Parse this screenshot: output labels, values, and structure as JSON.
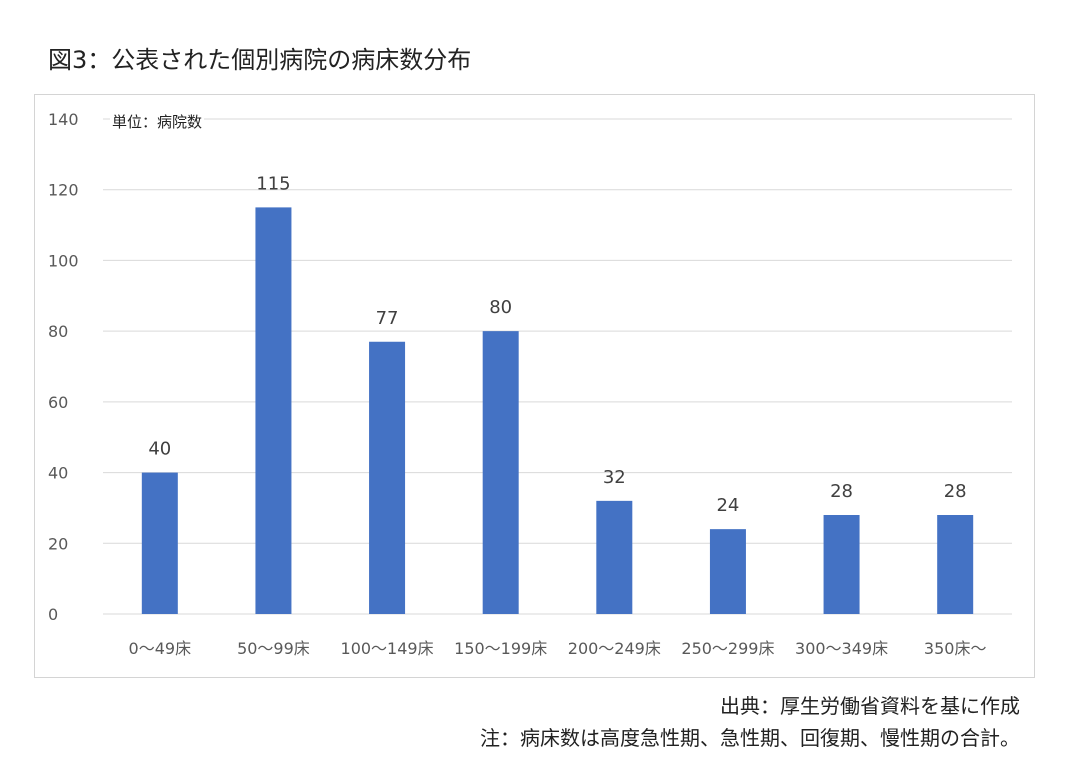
{
  "title": "図3：公表された個別病院の病床数分布",
  "unit_label": "単位：病院数",
  "source_note": "出典：厚生労働省資料を基に作成",
  "footnote": "注：病床数は高度急性期、急性期、回復期、慢性期の合計。",
  "colors": {
    "bar": "#4472c4",
    "grid": "#d9d9d9",
    "tick_text": "#595959",
    "label_text": "#404040"
  },
  "chart_data": {
    "type": "bar",
    "categories": [
      "0～49床",
      "50～99床",
      "100～149床",
      "150～199床",
      "200～249床",
      "250～299床",
      "300～349床",
      "350床～"
    ],
    "values": [
      40,
      115,
      77,
      80,
      32,
      24,
      28,
      28
    ],
    "ylim": [
      0,
      140
    ],
    "yticks": [
      0,
      20,
      40,
      60,
      80,
      100,
      120,
      140
    ],
    "grid": true,
    "data_labels": true,
    "legend": "none"
  }
}
